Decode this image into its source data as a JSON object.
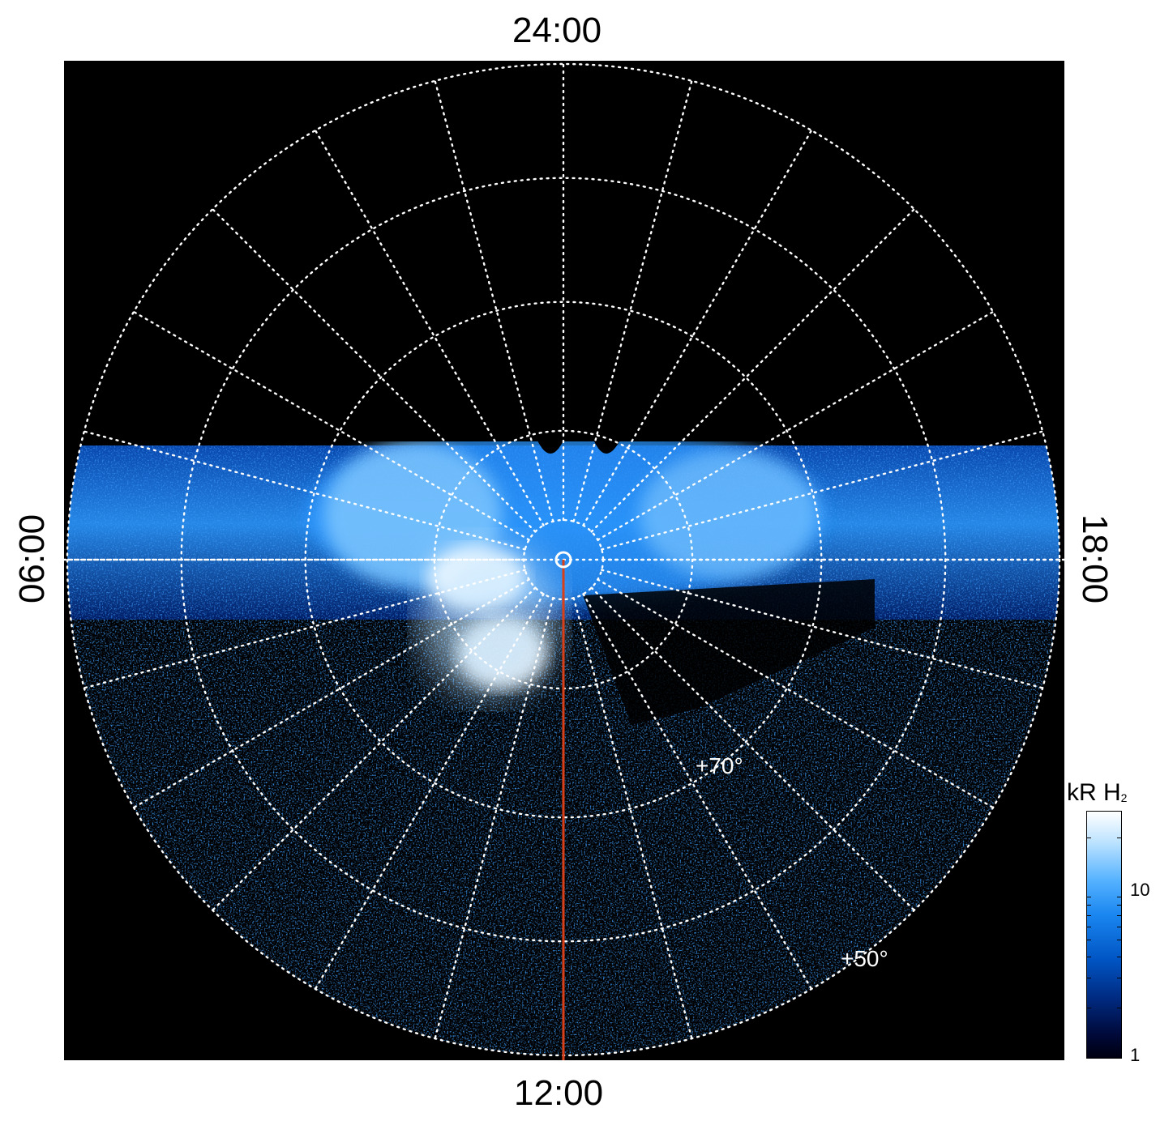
{
  "labels": {
    "top": "24:00",
    "bottom": "12:00",
    "left": "06:00",
    "right": "18:00",
    "lat_inner": "+70°",
    "lat_outer": "+50°"
  },
  "colorbar": {
    "unit": "kR H",
    "unit_sub": "2",
    "ticks": [
      "10",
      "1"
    ]
  },
  "colors": {
    "background": "#000000",
    "grid": "#ffffff",
    "meridian_line": "#d8401a",
    "aurora_dark": "#001a66",
    "aurora_mid": "#1a86f0",
    "aurora_bright": "#ffffff"
  }
}
